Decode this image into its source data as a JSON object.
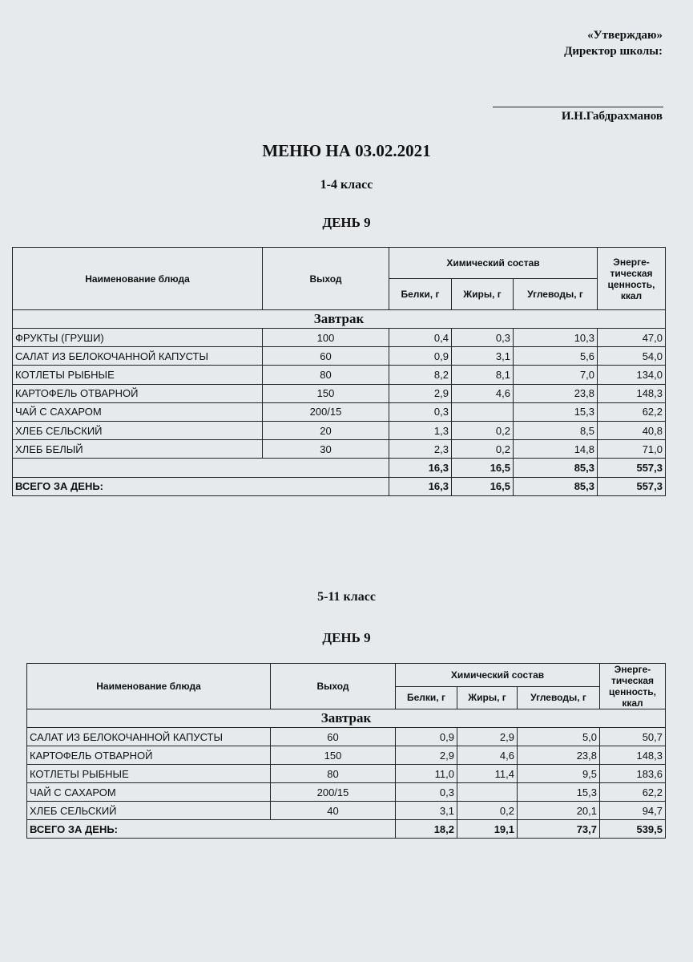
{
  "approval": {
    "line1": "«Утверждаю»",
    "line2": "Директор школы:",
    "name": "И.Н.Габдрахманов"
  },
  "title": "МЕНЮ НА 03.02.2021",
  "table_header": {
    "name": "Наименование блюда",
    "yield": "Выход",
    "chem": "Химический состав",
    "protein": "Белки, г",
    "fat": "Жиры, г",
    "carbs": "Углеводы, г",
    "energy": "Энерге-тическая ценность, ккал"
  },
  "sections": [
    {
      "grade": "1-4 класс",
      "day": "ДЕНЬ 9",
      "meal": "Завтрак",
      "rows": [
        [
          "ФРУКТЫ (ГРУШИ)",
          "100",
          "0,4",
          "0,3",
          "10,3",
          "47,0"
        ],
        [
          "САЛАТ ИЗ БЕЛОКОЧАННОЙ КАПУСТЫ",
          "60",
          "0,9",
          "3,1",
          "5,6",
          "54,0"
        ],
        [
          "КОТЛЕТЫ РЫБНЫЕ",
          "80",
          "8,2",
          "8,1",
          "7,0",
          "134,0"
        ],
        [
          "КАРТОФЕЛЬ ОТВАРНОЙ",
          "150",
          "2,9",
          "4,6",
          "23,8",
          "148,3"
        ],
        [
          "ЧАЙ С САХАРОМ",
          "200/15",
          "0,3",
          null,
          "15,3",
          "62,2"
        ],
        [
          "ХЛЕБ СЕЛЬСКИЙ",
          "20",
          "1,3",
          "0,2",
          "8,5",
          "40,8"
        ],
        [
          "ХЛЕБ БЕЛЫЙ",
          "30",
          "2,3",
          "0,2",
          "14,8",
          "71,0"
        ]
      ],
      "subtotal": [
        "16,3",
        "16,5",
        "85,3",
        "557,3"
      ],
      "total_label": "ВСЕГО ЗА ДЕНЬ:",
      "total": [
        "16,3",
        "16,5",
        "85,3",
        "557,3"
      ]
    },
    {
      "grade": "5-11 класс",
      "day": "ДЕНЬ 9",
      "meal": "Завтрак",
      "rows": [
        [
          "САЛАТ ИЗ БЕЛОКОЧАННОЙ КАПУСТЫ",
          "60",
          "0,9",
          "2,9",
          "5,0",
          "50,7"
        ],
        [
          "КАРТОФЕЛЬ ОТВАРНОЙ",
          "150",
          "2,9",
          "4,6",
          "23,8",
          "148,3"
        ],
        [
          "КОТЛЕТЫ РЫБНЫЕ",
          "80",
          "11,0",
          "11,4",
          "9,5",
          "183,6"
        ],
        [
          "ЧАЙ С САХАРОМ",
          "200/15",
          "0,3",
          null,
          "15,3",
          "62,2"
        ],
        [
          "ХЛЕБ СЕЛЬСКИЙ",
          "40",
          "3,1",
          "0,2",
          "20,1",
          "94,7"
        ]
      ],
      "total_label": "ВСЕГО ЗА ДЕНЬ:",
      "total": [
        "18,2",
        "19,1",
        "73,7",
        "539,5"
      ]
    }
  ]
}
